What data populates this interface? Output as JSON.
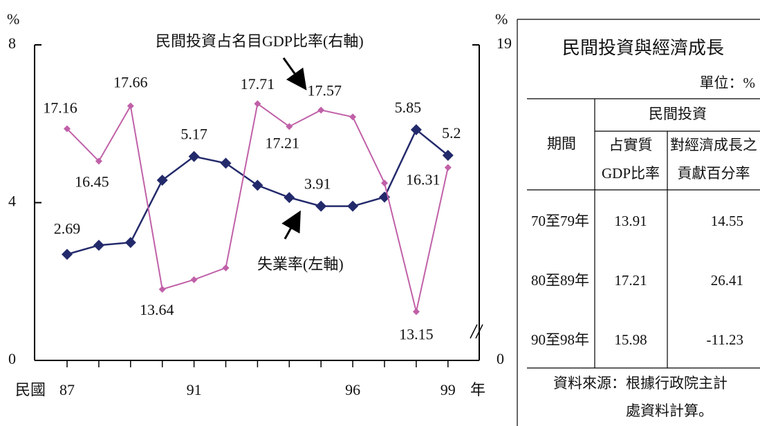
{
  "chart_data": {
    "type": "line",
    "ylabel": "%",
    "y2label": "%",
    "xlabel_left": "民國",
    "xlabel": "年",
    "categories": [
      "87",
      null,
      null,
      null,
      "91",
      null,
      null,
      null,
      null,
      "96",
      null,
      null,
      "99"
    ],
    "ylim": [
      0,
      8
    ],
    "yticks": [
      0,
      4,
      8
    ],
    "y2lim": [
      12.08,
      19
    ],
    "y2ticks": [
      {
        "value": 12.08,
        "label": "0"
      },
      19
    ],
    "series": [
      {
        "name": "失業率(左軸)",
        "color": "#232a6b",
        "axis": "y",
        "values": [
          2.69,
          2.92,
          2.99,
          4.57,
          5.17,
          5.0,
          4.44,
          4.13,
          3.91,
          3.91,
          4.14,
          5.85,
          5.2
        ],
        "value_labels": [
          "2.69",
          null,
          null,
          null,
          "5.17",
          null,
          null,
          null,
          "3.91",
          null,
          null,
          "5.85",
          "5.2"
        ]
      },
      {
        "name": "民間投資占名目GDP比率(右軸)",
        "color": "#c060a8",
        "axis": "y2",
        "values": [
          17.16,
          16.45,
          17.66,
          13.64,
          13.85,
          14.11,
          17.71,
          17.21,
          17.57,
          17.42,
          15.97,
          13.15,
          16.31
        ],
        "value_labels": [
          "17.16",
          "16.45",
          "17.66",
          "13.64",
          null,
          null,
          "17.71",
          "17.21",
          "17.57",
          null,
          null,
          "13.15",
          "16.31"
        ]
      }
    ]
  },
  "table": {
    "title": "民間投資與經濟成長",
    "unit": "單位：%",
    "header": {
      "period": "期間",
      "group": "民間投資",
      "col1": [
        "占實質",
        "GDP比率"
      ],
      "col2": [
        "對經濟成長之",
        "貢獻百分率"
      ]
    },
    "rows": [
      [
        "70至79年",
        "13.91",
        "14.55"
      ],
      [
        "80至89年",
        "17.21",
        "26.41"
      ],
      [
        "90至98年",
        "15.98",
        "-11.23"
      ]
    ],
    "source": [
      "資料來源：根據行政院主計",
      "處資料計算。"
    ]
  }
}
